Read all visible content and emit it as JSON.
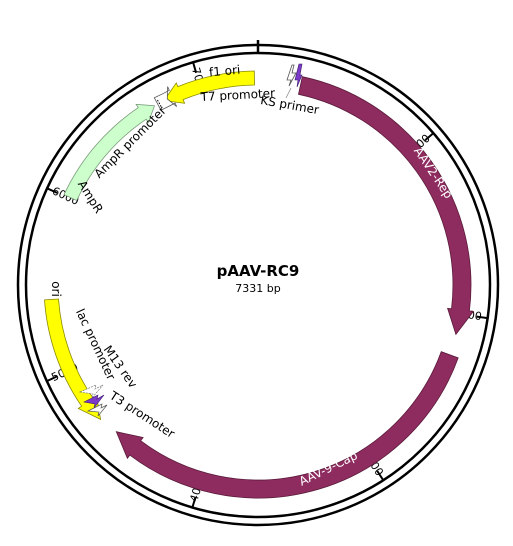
{
  "map": {
    "name": "pAAV-RC9",
    "length_label": "7331 bp",
    "length_bp": 7331
  },
  "colors": {
    "rep_cap": "#8E2C5F",
    "ori_fori": "#FFFF00",
    "ampr": "#CCFFCC",
    "primer": "#7B3BC8",
    "backbone": "#000000"
  },
  "ticks": [
    {
      "bp": 1000,
      "label": "1000"
    },
    {
      "bp": 2000,
      "label": "2000"
    },
    {
      "bp": 3000,
      "label": "3000"
    },
    {
      "bp": 4000,
      "label": "4000"
    },
    {
      "bp": 5000,
      "label": "5000"
    },
    {
      "bp": 6000,
      "label": "6000"
    },
    {
      "bp": 7000,
      "label": "7000"
    }
  ],
  "features": {
    "aav2_rep": {
      "label": "AAV2-Rep"
    },
    "aav9_cap": {
      "label": "AAV-9-Cap"
    },
    "f1_ori": {
      "label": "f1 ori"
    },
    "ampr": {
      "label": "AmpR"
    },
    "ampr_promoter": {
      "label": "AmpR promoter"
    },
    "ori": {
      "label": "ori"
    },
    "t7_promoter": {
      "label": "T7 promoter"
    },
    "ks_primer": {
      "label": "KS primer"
    },
    "lac_promoter": {
      "label": "lac promoter"
    },
    "m13_rev": {
      "label": "M13 rev"
    },
    "t3_promoter": {
      "label": "T3 promoter"
    }
  }
}
